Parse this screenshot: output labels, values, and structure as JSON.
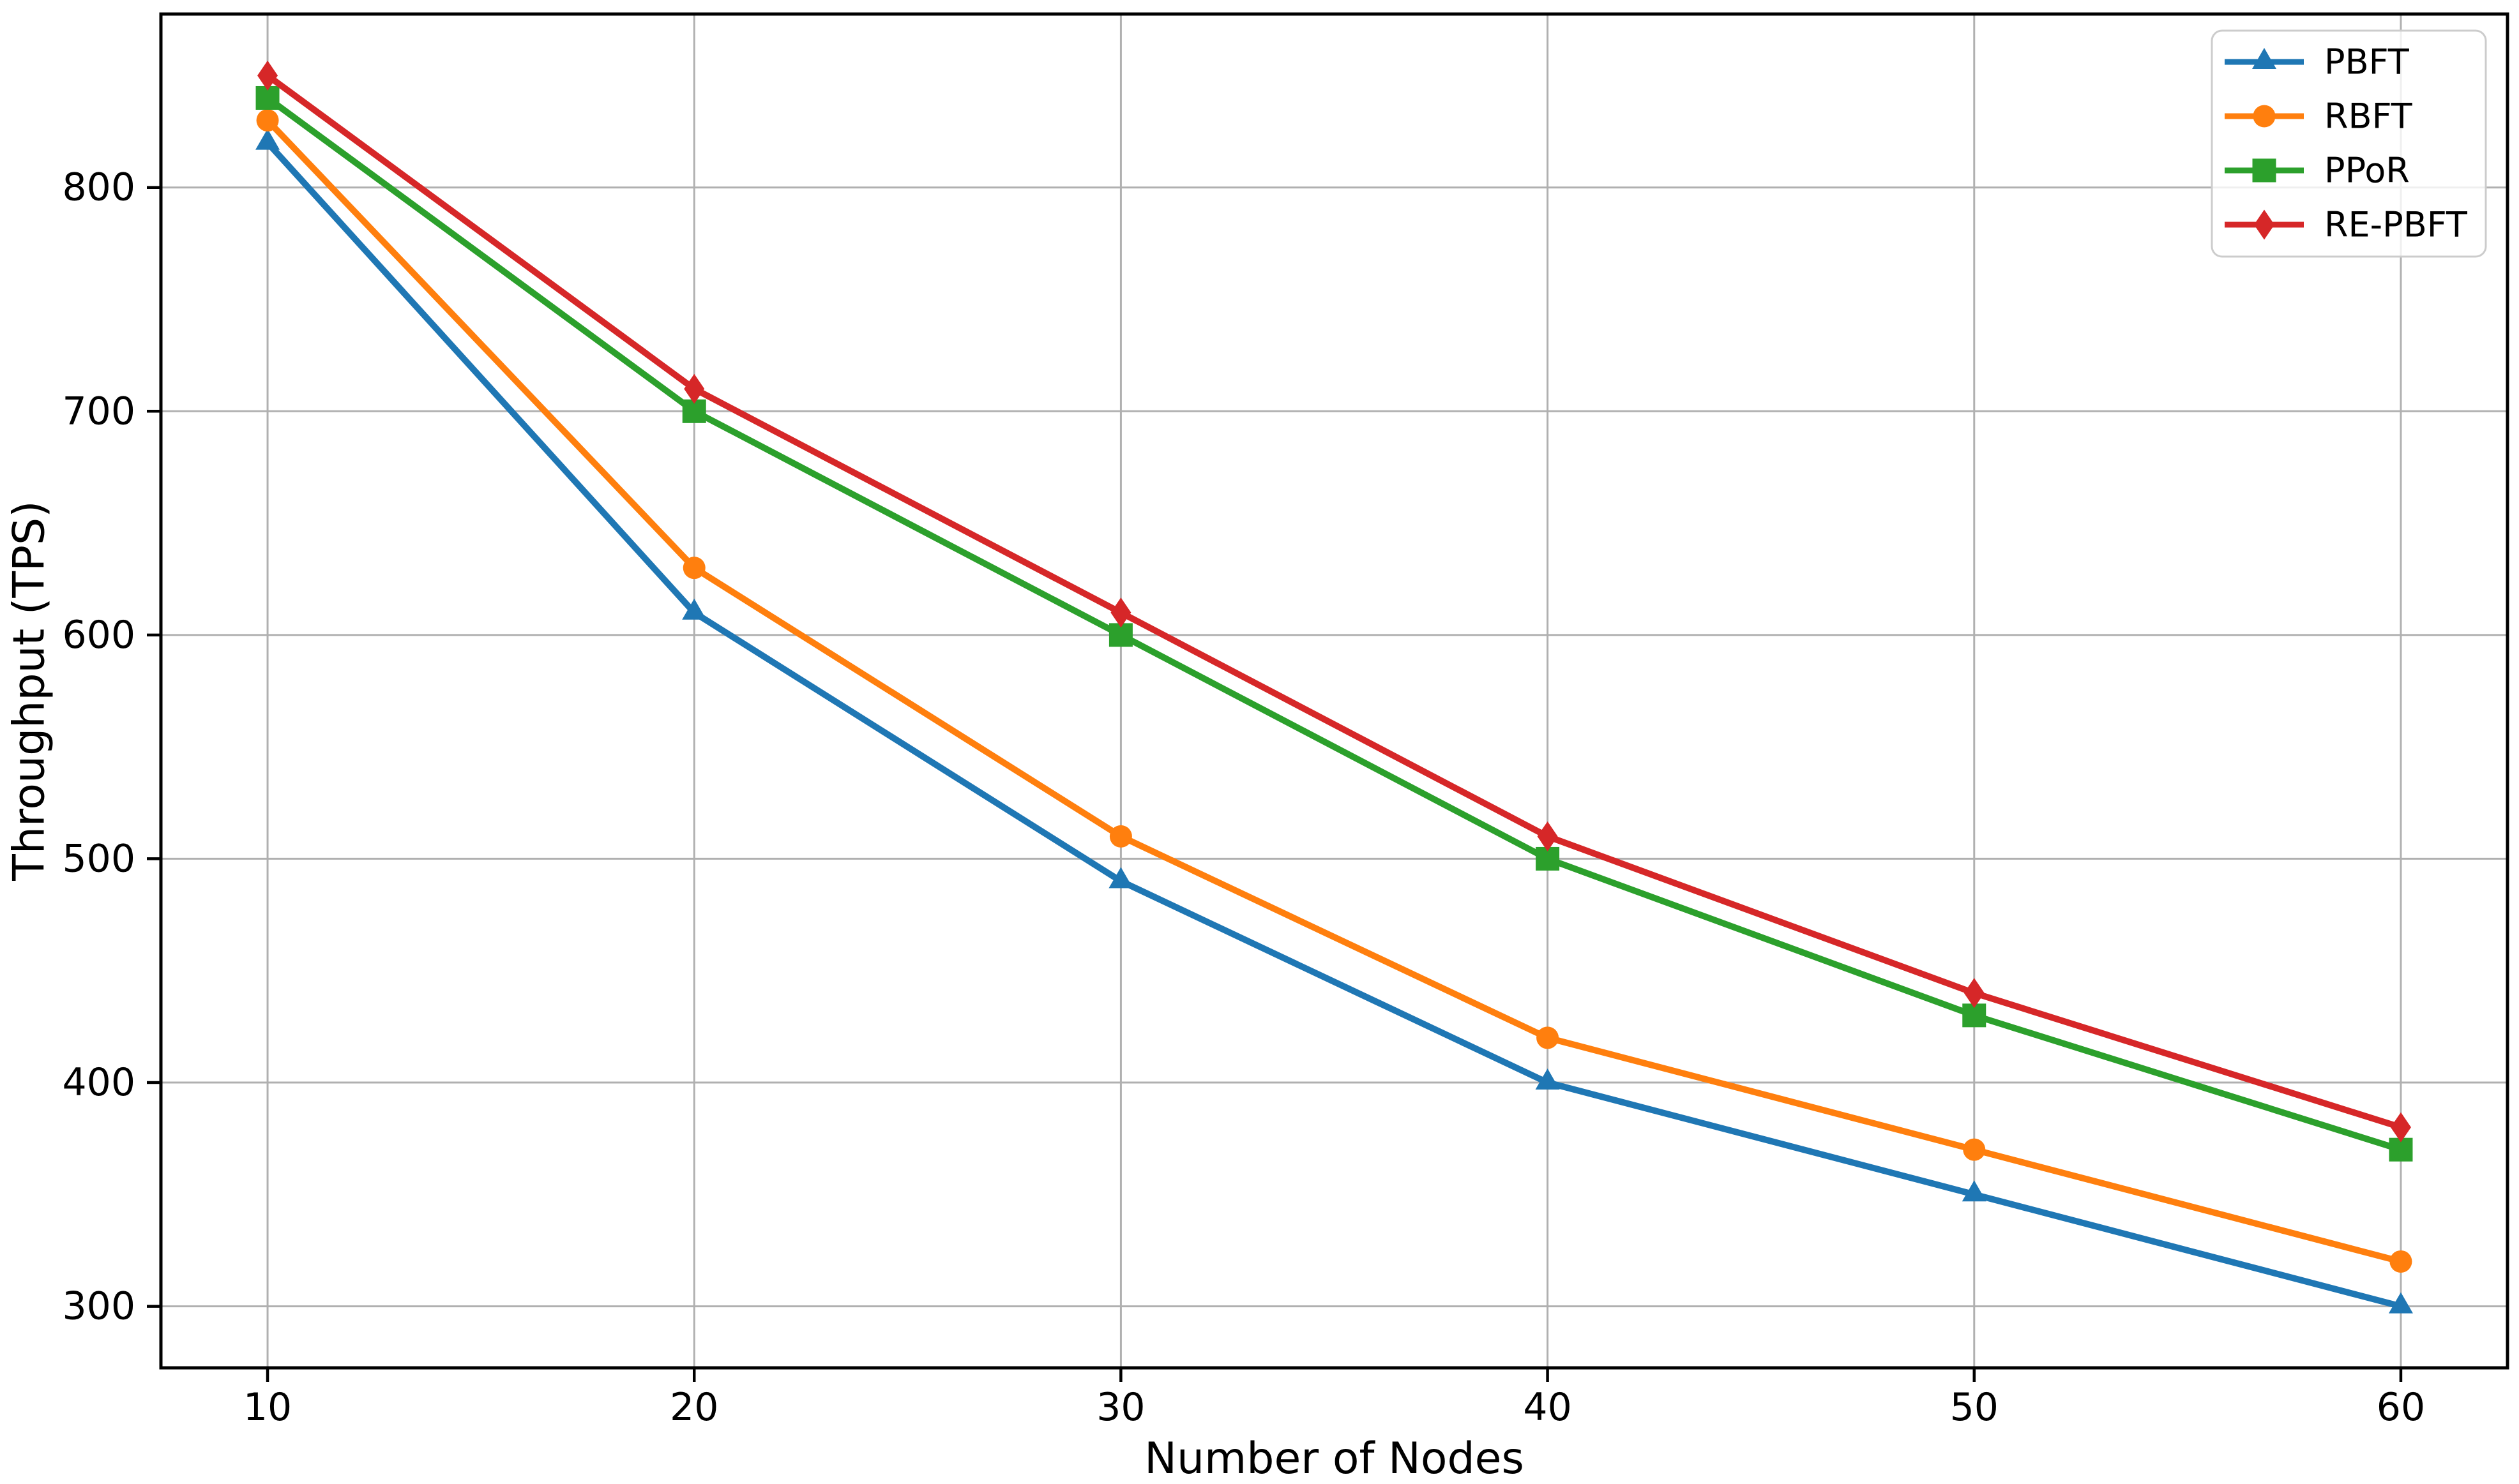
{
  "chart_data": {
    "type": "line",
    "title": "",
    "xlabel": "Number of Nodes",
    "ylabel": "Throughput (TPS)",
    "x": [
      10,
      20,
      30,
      40,
      50,
      60
    ],
    "xticks": [
      10,
      20,
      30,
      40,
      50,
      60
    ],
    "yticks": [
      300,
      400,
      500,
      600,
      700,
      800
    ],
    "xlim": [
      7.5,
      62.5
    ],
    "ylim": [
      272.5,
      877.5
    ],
    "grid": true,
    "legend_position": "upper right",
    "series": [
      {
        "name": "PBFT",
        "color": "#1f77b4",
        "marker": "triangle-up",
        "values": [
          820,
          610,
          490,
          400,
          350,
          300
        ]
      },
      {
        "name": "RBFT",
        "color": "#ff7f0e",
        "marker": "circle",
        "values": [
          830,
          630,
          510,
          420,
          370,
          320
        ]
      },
      {
        "name": "PPoR",
        "color": "#2ca02c",
        "marker": "square",
        "values": [
          840,
          700,
          600,
          500,
          430,
          370
        ]
      },
      {
        "name": "RE-PBFT",
        "color": "#d62728",
        "marker": "diamond",
        "values": [
          850,
          710,
          610,
          510,
          440,
          380
        ]
      }
    ],
    "colors": {
      "grid": "#b0b0b0",
      "axis": "#000000",
      "tick_label": "#000000",
      "background": "#ffffff",
      "legend_border": "#cccccc",
      "legend_fill": "#ffffff"
    }
  }
}
